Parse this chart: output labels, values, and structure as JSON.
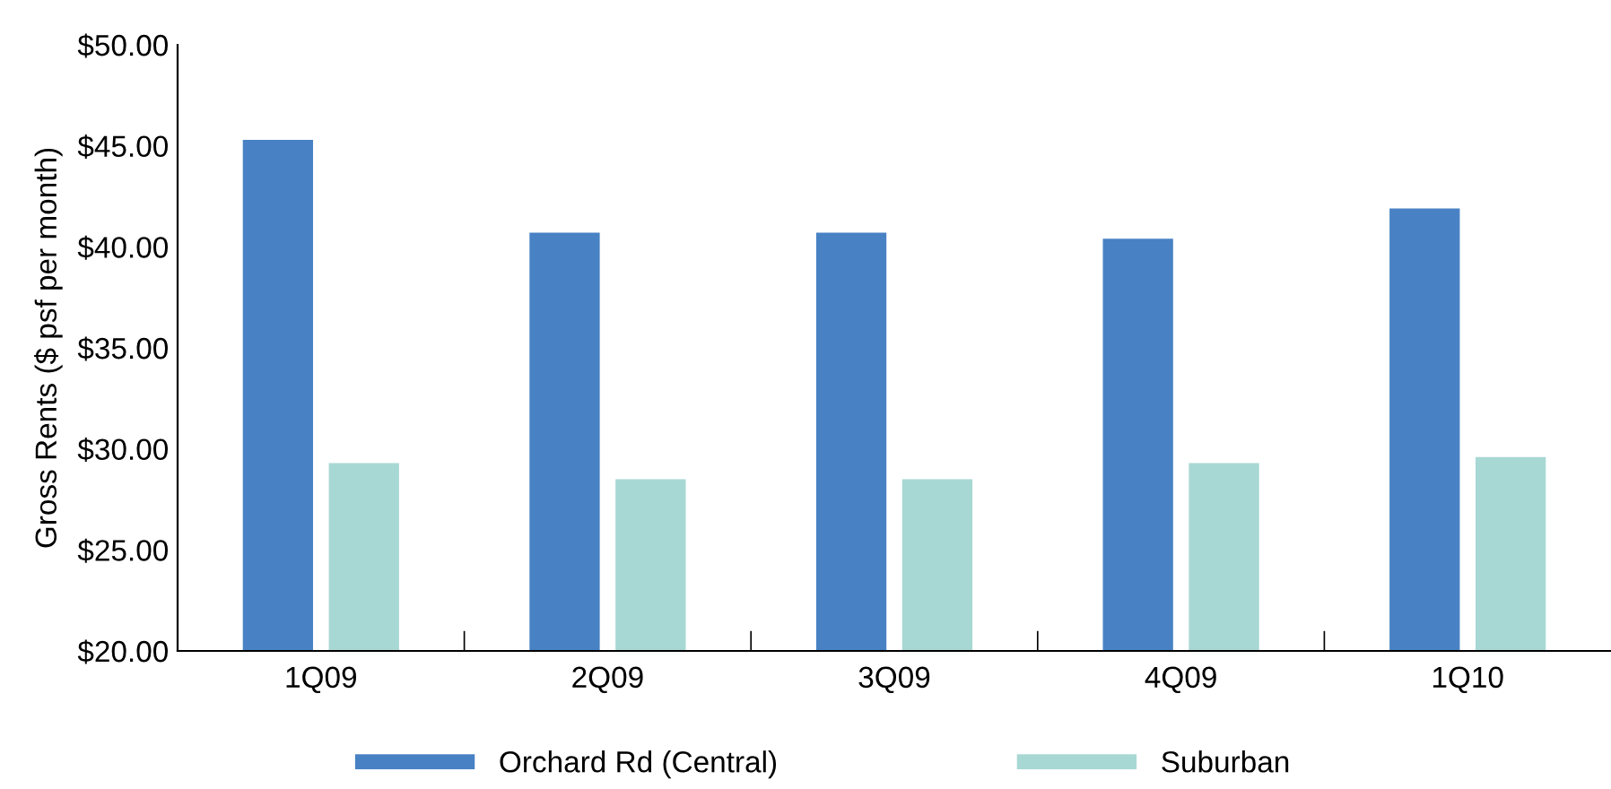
{
  "chart_data": {
    "type": "bar",
    "ylabel": "Gross Rents ($ psf per month)",
    "categories": [
      "1Q09",
      "2Q09",
      "3Q09",
      "4Q09",
      "1Q10"
    ],
    "series": [
      {
        "name": "Orchard Rd (Central)",
        "color": "#4882c4",
        "values": [
          45.3,
          40.7,
          40.7,
          40.4,
          41.9
        ]
      },
      {
        "name": "Suburban",
        "color": "#a8d8d4",
        "values": [
          29.3,
          28.5,
          28.5,
          29.3,
          29.6
        ]
      }
    ],
    "ylim": [
      20,
      50
    ],
    "yticks": [
      {
        "value": 20,
        "label": "$20.00"
      },
      {
        "value": 25,
        "label": "$25.00"
      },
      {
        "value": 30,
        "label": "$30.00"
      },
      {
        "value": 35,
        "label": "$35.00"
      },
      {
        "value": 40,
        "label": "$40.00"
      },
      {
        "value": 45,
        "label": "$45.00"
      },
      {
        "value": 50,
        "label": "$50.00"
      }
    ],
    "grid": false,
    "legend": "bottom"
  }
}
